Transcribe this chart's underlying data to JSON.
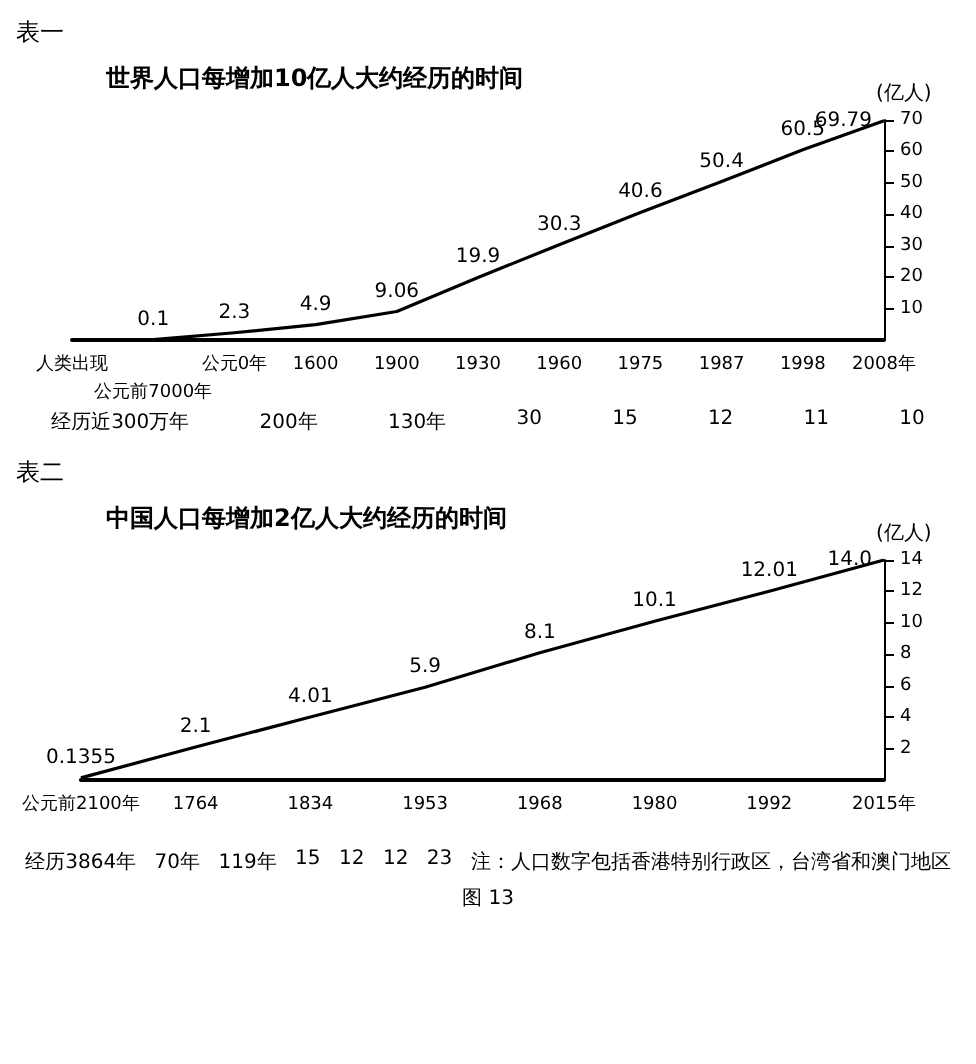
{
  "chart_data": [
    {
      "type": "line",
      "title": "表一",
      "subtitle": "世界人口每增加10亿人大约经历的时间",
      "ylabel": "(亿人)",
      "categories": [
        "人类出现",
        "公元前7000年",
        "公元0年",
        "1600",
        "1900",
        "1930",
        "1960",
        "1975",
        "1987",
        "1998",
        "2008年"
      ],
      "values": [
        0,
        0.1,
        2.3,
        4.9,
        9.06,
        19.9,
        30.3,
        40.6,
        50.4,
        60.5,
        69.79
      ],
      "value_labels": [
        null,
        "0.1",
        "2.3",
        "4.9",
        "9.06",
        "19.9",
        "30.3",
        "40.6",
        "50.4",
        "60.5",
        "69.79"
      ],
      "color": "#000000",
      "ylim": [
        0,
        70
      ],
      "yticks": [
        10,
        20,
        30,
        40,
        50,
        60,
        70
      ],
      "grid": false,
      "marker": "none",
      "annotations": [
        "经历近300万年",
        "200年",
        "130年",
        "30",
        "15",
        "12",
        "11",
        "10"
      ]
    },
    {
      "type": "line",
      "title": "表二",
      "subtitle": "中国人口每增加2亿人大约经历的时间",
      "ylabel": "(亿人)",
      "categories": [
        "公元前2100年",
        "1764",
        "1834",
        "1953",
        "1968",
        "1980",
        "1992",
        "2015年"
      ],
      "values": [
        0.1355,
        2.1,
        4.01,
        5.9,
        8.1,
        10.1,
        12.01,
        14.0
      ],
      "value_labels": [
        "0.1355",
        "2.1",
        "4.01",
        "5.9",
        "8.1",
        "10.1",
        "12.01",
        "14.0"
      ],
      "color": "#000000",
      "ylim": [
        0,
        14
      ],
      "yticks": [
        2,
        4,
        6,
        8,
        10,
        12,
        14
      ],
      "grid": false,
      "marker": "none",
      "annotations": [
        "经历3864年",
        "70年",
        "119年",
        "15",
        "12",
        "12",
        "23",
        "注：人口数字包括香港特别行政区，台湾省和澳门地区",
        "图 13"
      ]
    }
  ]
}
